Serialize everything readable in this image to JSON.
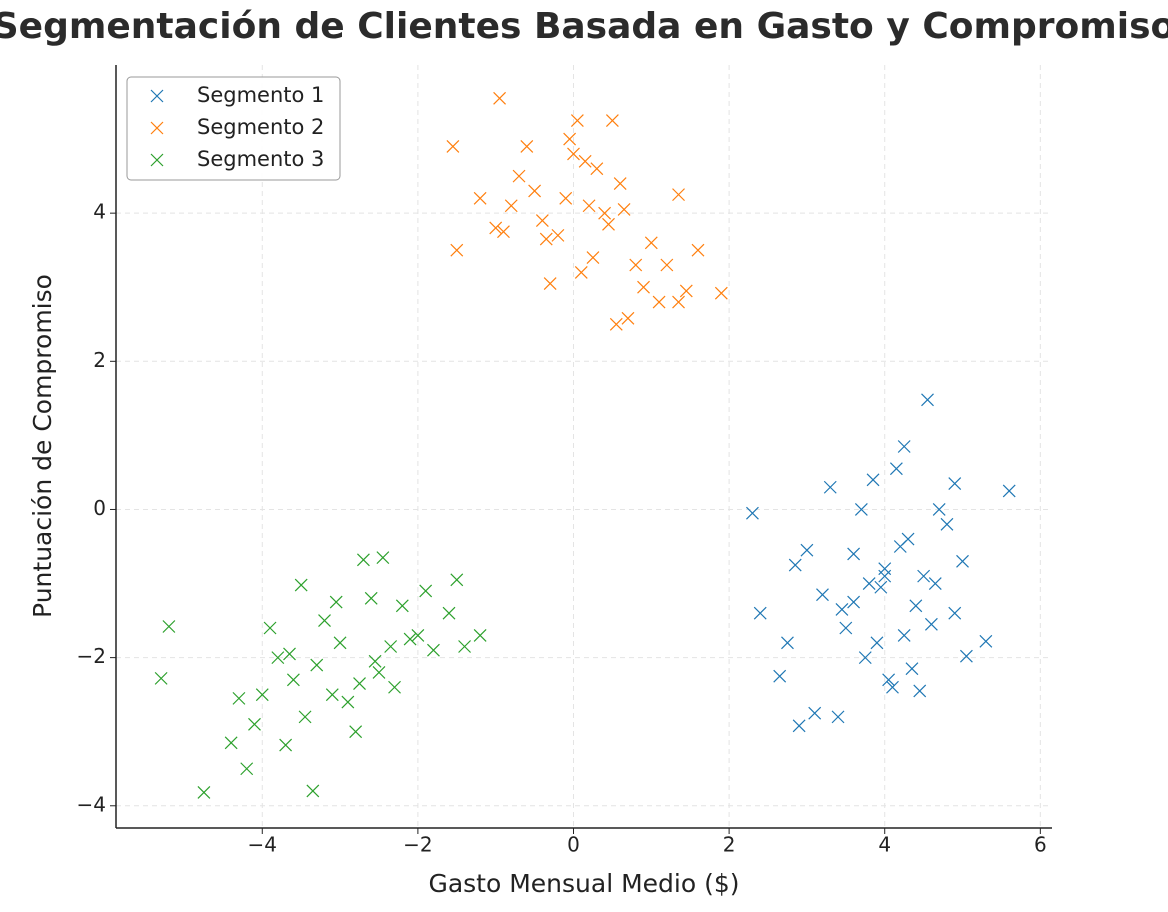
{
  "chart_data": {
    "type": "scatter",
    "title": "Segmentación de Clientes Basada en Gasto y Compromiso",
    "x_label": "Gasto Mensual Medio ($)",
    "y_label": "Puntuación de Compromiso",
    "xlim": [
      -5.88,
      6.15
    ],
    "ylim": [
      -4.3,
      6.0
    ],
    "xticks": [
      {
        "value": -4,
        "label": "−4"
      },
      {
        "value": -2,
        "label": "−2"
      },
      0,
      2,
      4,
      6
    ],
    "yticks": [
      {
        "value": -4,
        "label": "−4"
      },
      {
        "value": -2,
        "label": "−2"
      },
      0,
      2,
      4
    ],
    "grid": true,
    "legend": "upper-left",
    "marker": "x",
    "series": [
      {
        "name": "Segmento 1",
        "color": "#1f77b4",
        "x": [
          4.55,
          5.6,
          4.25,
          2.3,
          2.9,
          3.1,
          3.4,
          5.3,
          5.05,
          2.65,
          3.3,
          2.4,
          3.8,
          4.0,
          4.2,
          4.4,
          3.9,
          3.6,
          3.5,
          4.1,
          4.3,
          4.7,
          4.9,
          3.7,
          3.2,
          4.6,
          4.8,
          3.0,
          3.95,
          4.05,
          4.35,
          3.85,
          4.5,
          3.45,
          4.15,
          2.75,
          4.45,
          4.9,
          3.6,
          4.0,
          4.25,
          3.75,
          5.0,
          2.85,
          4.65
        ],
        "y": [
          1.48,
          0.25,
          0.85,
          -0.05,
          -2.92,
          -2.75,
          -2.8,
          -1.78,
          -1.98,
          -2.25,
          0.3,
          -1.4,
          -1.0,
          -0.8,
          -0.5,
          -1.3,
          -1.8,
          -0.6,
          -1.6,
          -2.4,
          -0.4,
          0.0,
          -1.4,
          0.0,
          -1.15,
          -1.55,
          -0.2,
          -0.55,
          -1.05,
          -2.3,
          -2.15,
          0.4,
          -0.9,
          -1.35,
          0.55,
          -1.8,
          -2.45,
          0.35,
          -1.25,
          -0.9,
          -1.7,
          -2.0,
          -0.7,
          -0.75,
          -1.0
        ]
      },
      {
        "name": "Segmento 2",
        "color": "#ff7f0e",
        "x": [
          -0.95,
          0.05,
          0.5,
          -1.55,
          1.9,
          0.55,
          0.7,
          1.35,
          1.45,
          1.35,
          -1.5,
          1.6,
          -0.3,
          -0.5,
          0.2,
          0.3,
          -0.2,
          0.0,
          0.4,
          -0.7,
          -1.0,
          -0.8,
          0.8,
          1.0,
          -0.4,
          0.1,
          0.6,
          -0.6,
          0.25,
          -0.1,
          1.1,
          -1.2,
          0.9,
          -0.35,
          0.15,
          0.45,
          -0.9,
          1.2,
          -0.05,
          0.65
        ],
        "y": [
          5.55,
          5.25,
          5.25,
          4.9,
          2.92,
          2.5,
          2.58,
          2.8,
          2.95,
          4.25,
          3.5,
          3.5,
          3.05,
          4.3,
          4.1,
          4.6,
          3.7,
          4.8,
          4.0,
          4.5,
          3.8,
          4.1,
          3.3,
          3.6,
          3.9,
          3.2,
          4.4,
          4.9,
          3.4,
          4.2,
          2.8,
          4.2,
          3.0,
          3.65,
          4.7,
          3.85,
          3.75,
          3.3,
          5.0,
          4.05
        ]
      },
      {
        "name": "Segmento 3",
        "color": "#2ca02c",
        "x": [
          -5.3,
          -5.2,
          -4.75,
          -3.35,
          -4.2,
          -4.4,
          -3.7,
          -2.8,
          -1.2,
          -1.5,
          -2.45,
          -2.7,
          -3.5,
          -3.0,
          -2.5,
          -2.0,
          -3.8,
          -3.2,
          -2.2,
          -1.8,
          -4.0,
          -3.6,
          -2.9,
          -2.6,
          -3.3,
          -1.6,
          -2.3,
          -3.9,
          -3.1,
          -2.1,
          -4.3,
          -3.45,
          -2.75,
          -1.9,
          -3.65,
          -2.35,
          -4.1,
          -3.05,
          -1.4,
          -2.55
        ],
        "y": [
          -2.28,
          -1.58,
          -3.82,
          -3.8,
          -3.5,
          -3.15,
          -3.18,
          -3.0,
          -1.7,
          -0.95,
          -0.65,
          -0.68,
          -1.02,
          -1.8,
          -2.2,
          -1.7,
          -2.0,
          -1.5,
          -1.3,
          -1.9,
          -2.5,
          -2.3,
          -2.6,
          -1.2,
          -2.1,
          -1.4,
          -2.4,
          -1.6,
          -2.5,
          -1.75,
          -2.55,
          -2.8,
          -2.35,
          -1.1,
          -1.95,
          -1.85,
          -2.9,
          -1.25,
          -1.85,
          -2.05
        ]
      }
    ]
  }
}
